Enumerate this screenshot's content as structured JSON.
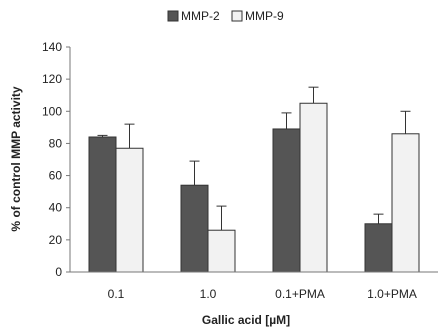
{
  "chart_data": {
    "type": "bar",
    "title": "",
    "xlabel": "Gallic acid [µM]",
    "ylabel": "% of control MMP activity",
    "categories": [
      "0.1",
      "1.0",
      "0.1+PMA",
      "1.0+PMA"
    ],
    "series": [
      {
        "name": "MMP-2",
        "values": [
          84,
          54,
          89,
          30
        ],
        "errors": [
          1,
          15,
          10,
          6
        ],
        "color": "#555555"
      },
      {
        "name": "MMP-9",
        "values": [
          77,
          26,
          105,
          86
        ],
        "errors": [
          15,
          15,
          10,
          14
        ],
        "color": "#f2f2f2"
      }
    ],
    "ylim": [
      0,
      140
    ],
    "yticks": [
      0,
      20,
      40,
      60,
      80,
      100,
      120,
      140
    ],
    "legend_position": "top-center",
    "grid": false
  }
}
